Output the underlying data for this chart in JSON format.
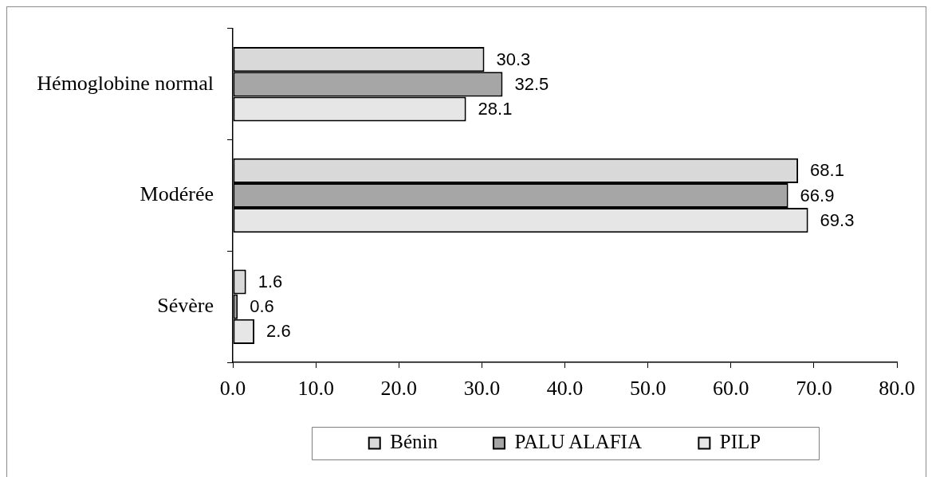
{
  "chart_data": {
    "type": "bar",
    "orientation": "horizontal",
    "categories": [
      "Hémoglobine normal",
      "Modérée",
      "Sévère"
    ],
    "series": [
      {
        "name": "Bénin",
        "color": "#d9d9d9",
        "values": [
          30.3,
          68.1,
          1.6
        ]
      },
      {
        "name": "PALU ALAFIA",
        "color": "#a6a6a6",
        "values": [
          32.5,
          66.9,
          0.6
        ]
      },
      {
        "name": "PILP",
        "color": "#e6e6e6",
        "values": [
          28.1,
          69.3,
          2.6
        ]
      }
    ],
    "xlim": [
      0,
      80
    ],
    "xticks": [
      {
        "value": 0,
        "label": "0.0"
      },
      {
        "value": 10,
        "label": "10.0"
      },
      {
        "value": 20,
        "label": "20.0"
      },
      {
        "value": 30,
        "label": "30.0"
      },
      {
        "value": 40,
        "label": "40.0"
      },
      {
        "value": 50,
        "label": "50.0"
      },
      {
        "value": 60,
        "label": "60.0"
      },
      {
        "value": 70,
        "label": "70.0"
      },
      {
        "value": 80,
        "label": "80.0"
      }
    ],
    "data_labels": true,
    "grid": false,
    "legend": "bottom"
  }
}
